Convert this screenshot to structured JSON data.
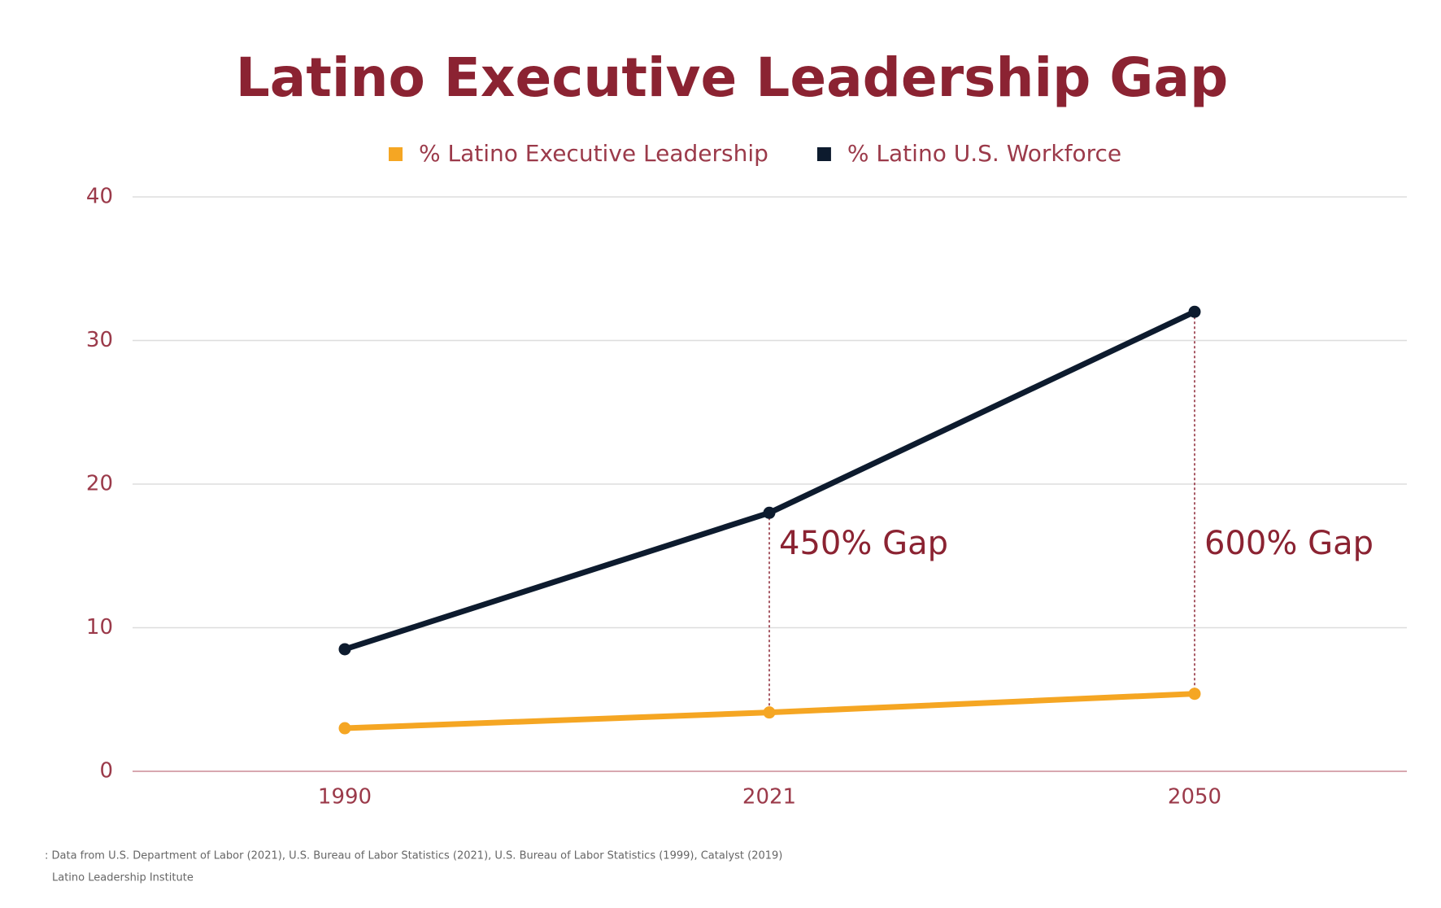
{
  "chart_data": {
    "type": "line",
    "title": "Latino Executive Leadership Gap",
    "categories": [
      "1990",
      "2021",
      "2050"
    ],
    "series": [
      {
        "name": "% Latino Executive Leadership",
        "color": "#f5a623",
        "values": [
          3,
          4.1,
          5.4
        ]
      },
      {
        "name": "% Latino U.S. Workforce",
        "color": "#0d1b2e",
        "values": [
          8.5,
          18,
          32
        ]
      }
    ],
    "ylim": [
      0,
      40
    ],
    "yticks": [
      0,
      10,
      20,
      30,
      40
    ],
    "grid": true,
    "annotations": [
      {
        "x": "2021",
        "text": "450% Gap"
      },
      {
        "x": "2050",
        "text": "600% Gap"
      }
    ],
    "source": ": Data from U.S. Department of Labor (2021), U.S. Bureau of Labor Statistics (2021), U.S. Bureau of Labor Statistics (1999), Catalyst (2019)",
    "credit": "Latino Leadership Institute"
  }
}
